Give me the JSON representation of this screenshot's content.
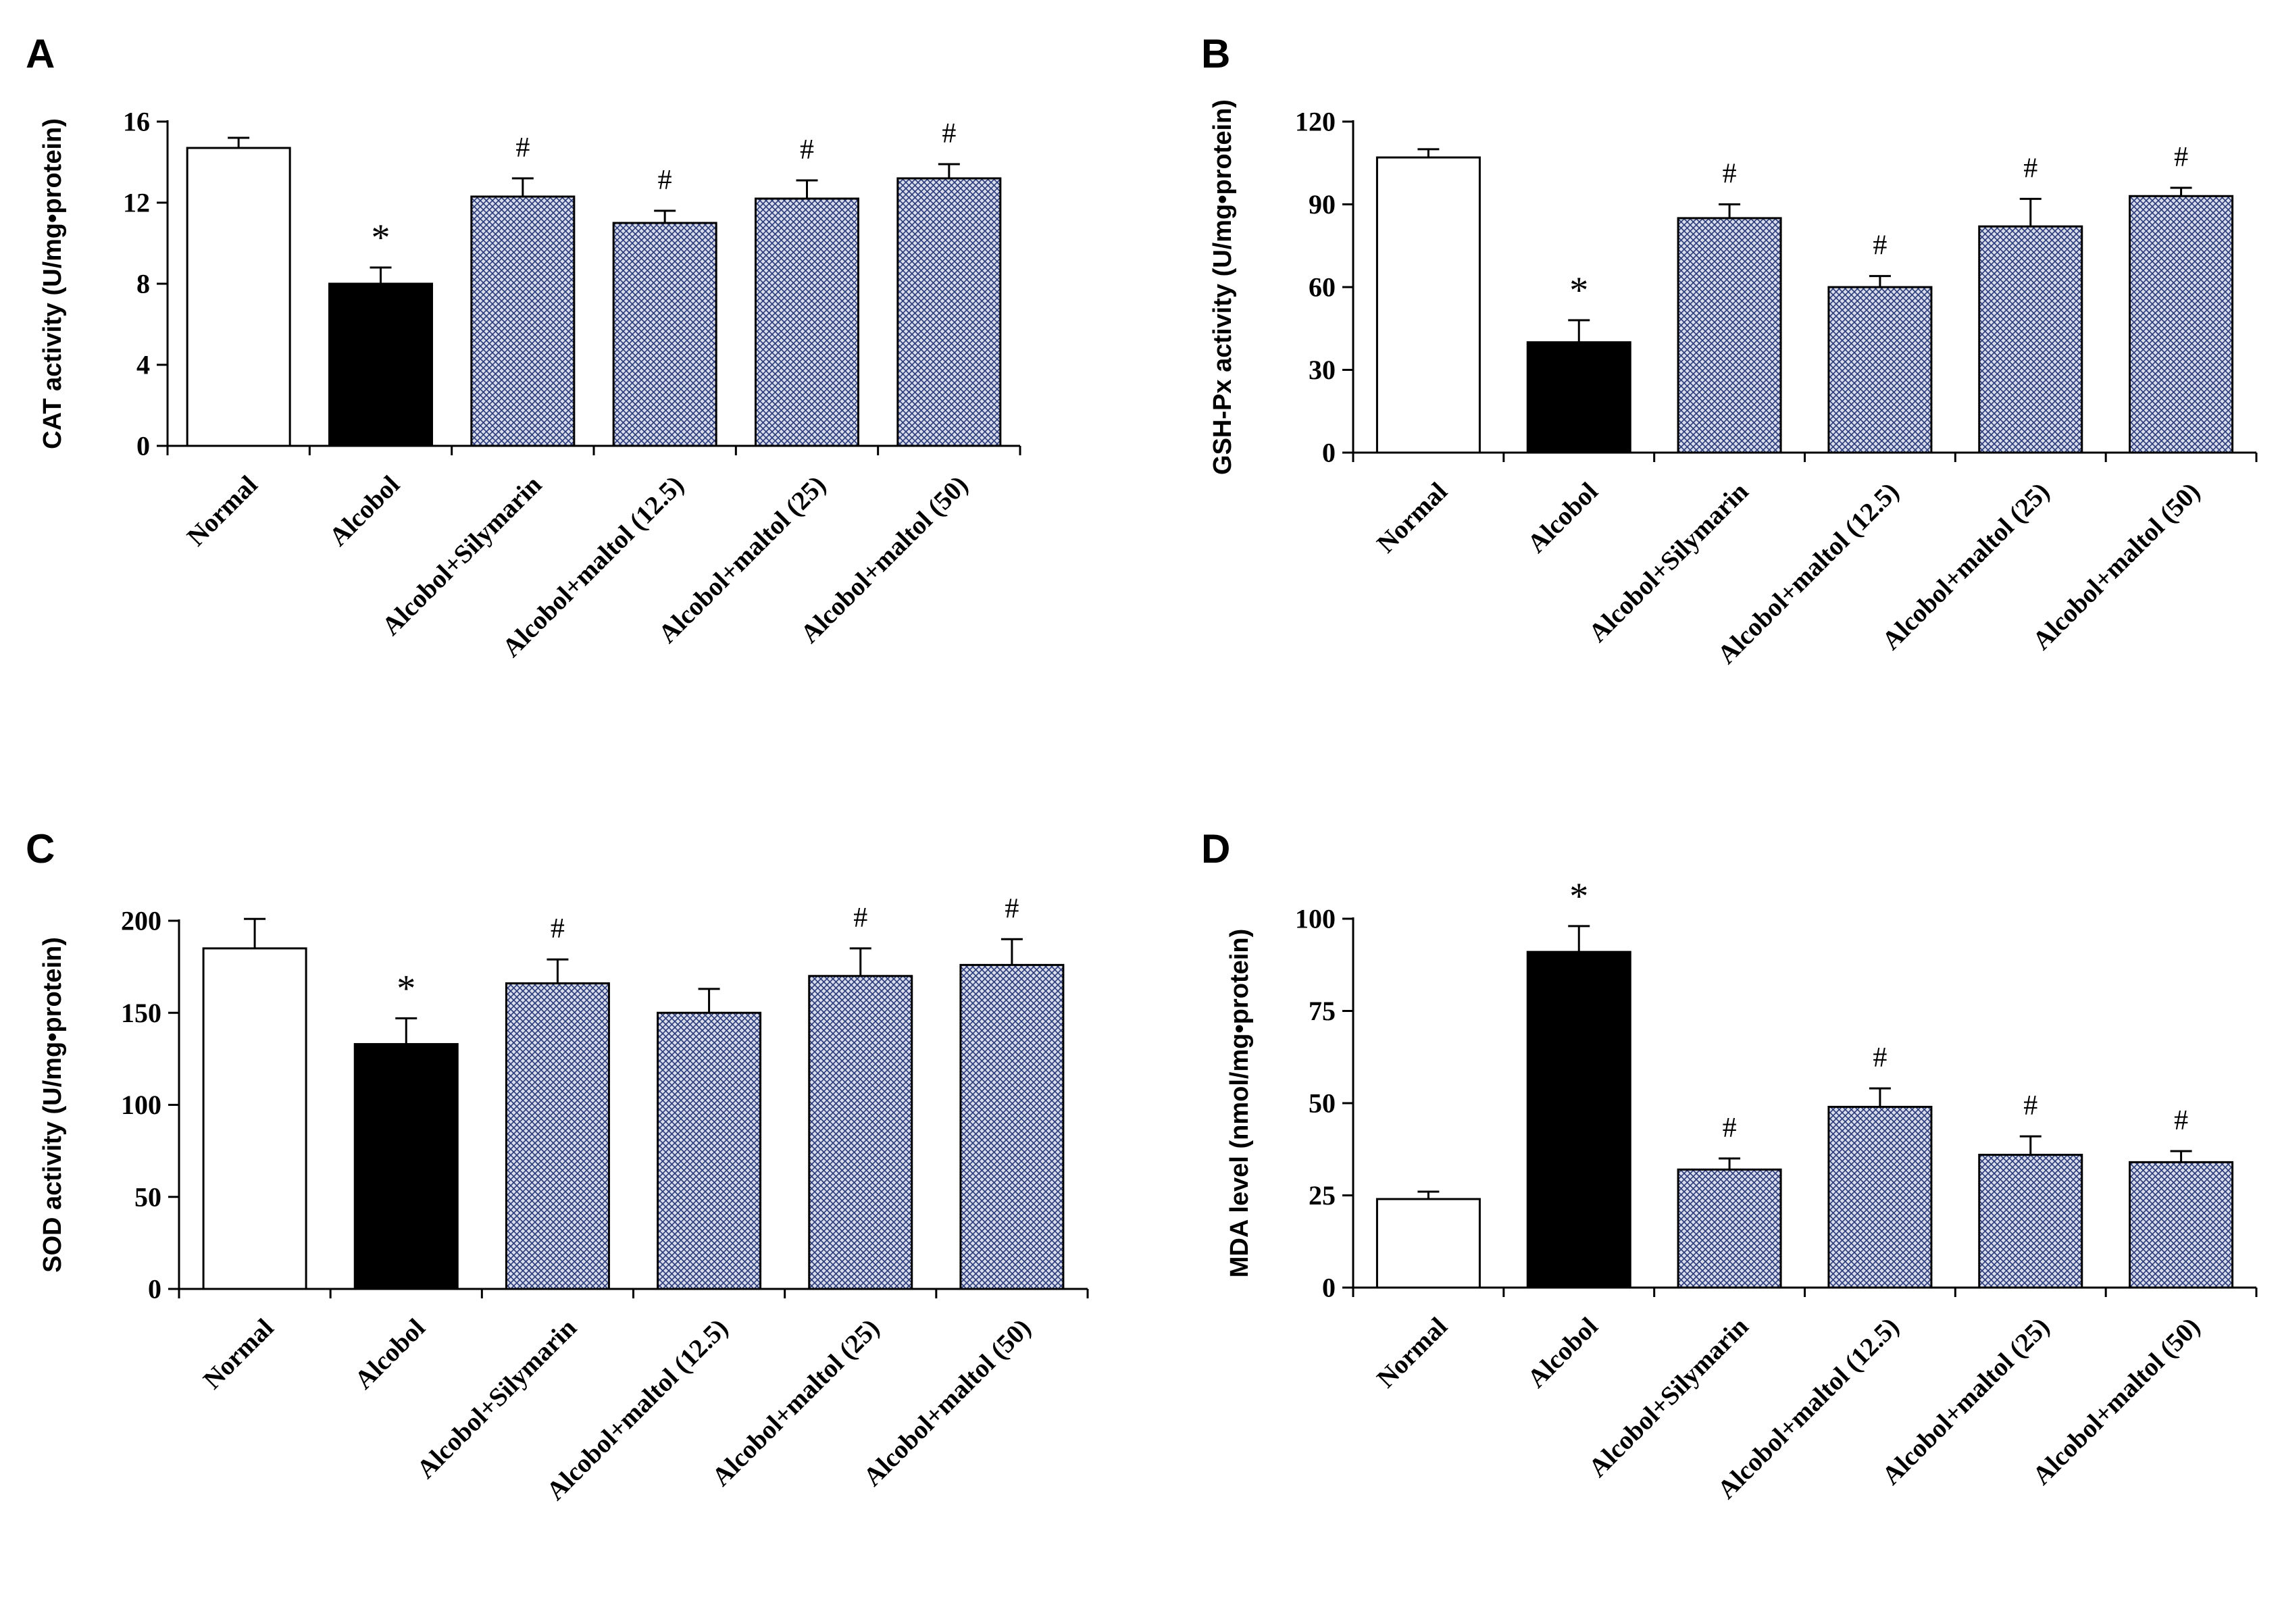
{
  "categories": [
    "Normal",
    "Alcobol",
    "Alcobol+Silymarin",
    "Alcobol+maltol (12.5)",
    "Alcobol+maltol (25)",
    "Alcobol+maltol (50)"
  ],
  "bar_styles": [
    "open",
    "solid",
    "hatched",
    "hatched",
    "hatched",
    "hatched"
  ],
  "colors": {
    "open": "#ffffff",
    "solid": "#000000",
    "hatch_bg": "#d8dcec",
    "hatch_line": "#2a3a78",
    "axis": "#000000"
  },
  "chart_data": [
    {
      "type": "bar",
      "panel": "A",
      "ylabel": "CAT activity (U/mg•protein)",
      "ylim": [
        0,
        16
      ],
      "yticks": [
        0,
        4,
        8,
        12,
        16
      ],
      "values": [
        14.7,
        8.0,
        12.3,
        11.0,
        12.2,
        13.2
      ],
      "errors": [
        0.5,
        0.8,
        0.9,
        0.6,
        0.9,
        0.7
      ],
      "markers": [
        "",
        "*",
        "#",
        "#",
        "#",
        "#"
      ]
    },
    {
      "type": "bar",
      "panel": "B",
      "ylabel": "GSH-Px activity (U/mg•protein)",
      "ylim": [
        0,
        120
      ],
      "yticks": [
        0,
        30,
        60,
        90,
        120
      ],
      "values": [
        107,
        40,
        85,
        60,
        82,
        93
      ],
      "errors": [
        3,
        8,
        5,
        4,
        10,
        3
      ],
      "markers": [
        "",
        "*",
        "#",
        "#",
        "#",
        "#"
      ]
    },
    {
      "type": "bar",
      "panel": "C",
      "ylabel": "SOD activity (U/mg•protein)",
      "ylim": [
        0,
        200
      ],
      "yticks": [
        0,
        50,
        100,
        150,
        200
      ],
      "values": [
        185,
        133,
        166,
        150,
        170,
        176
      ],
      "errors": [
        16,
        14,
        13,
        13,
        15,
        14
      ],
      "markers": [
        "",
        "*",
        "#",
        "",
        "#",
        "#"
      ]
    },
    {
      "type": "bar",
      "panel": "D",
      "ylabel": "MDA level (nmol/mg•protein)",
      "ylim": [
        0,
        100
      ],
      "yticks": [
        0,
        25,
        50,
        75,
        100
      ],
      "values": [
        24,
        91,
        32,
        49,
        36,
        34
      ],
      "errors": [
        2,
        7,
        3,
        5,
        5,
        3
      ],
      "markers": [
        "",
        "*",
        "#",
        "#",
        "#",
        "#"
      ]
    }
  ]
}
